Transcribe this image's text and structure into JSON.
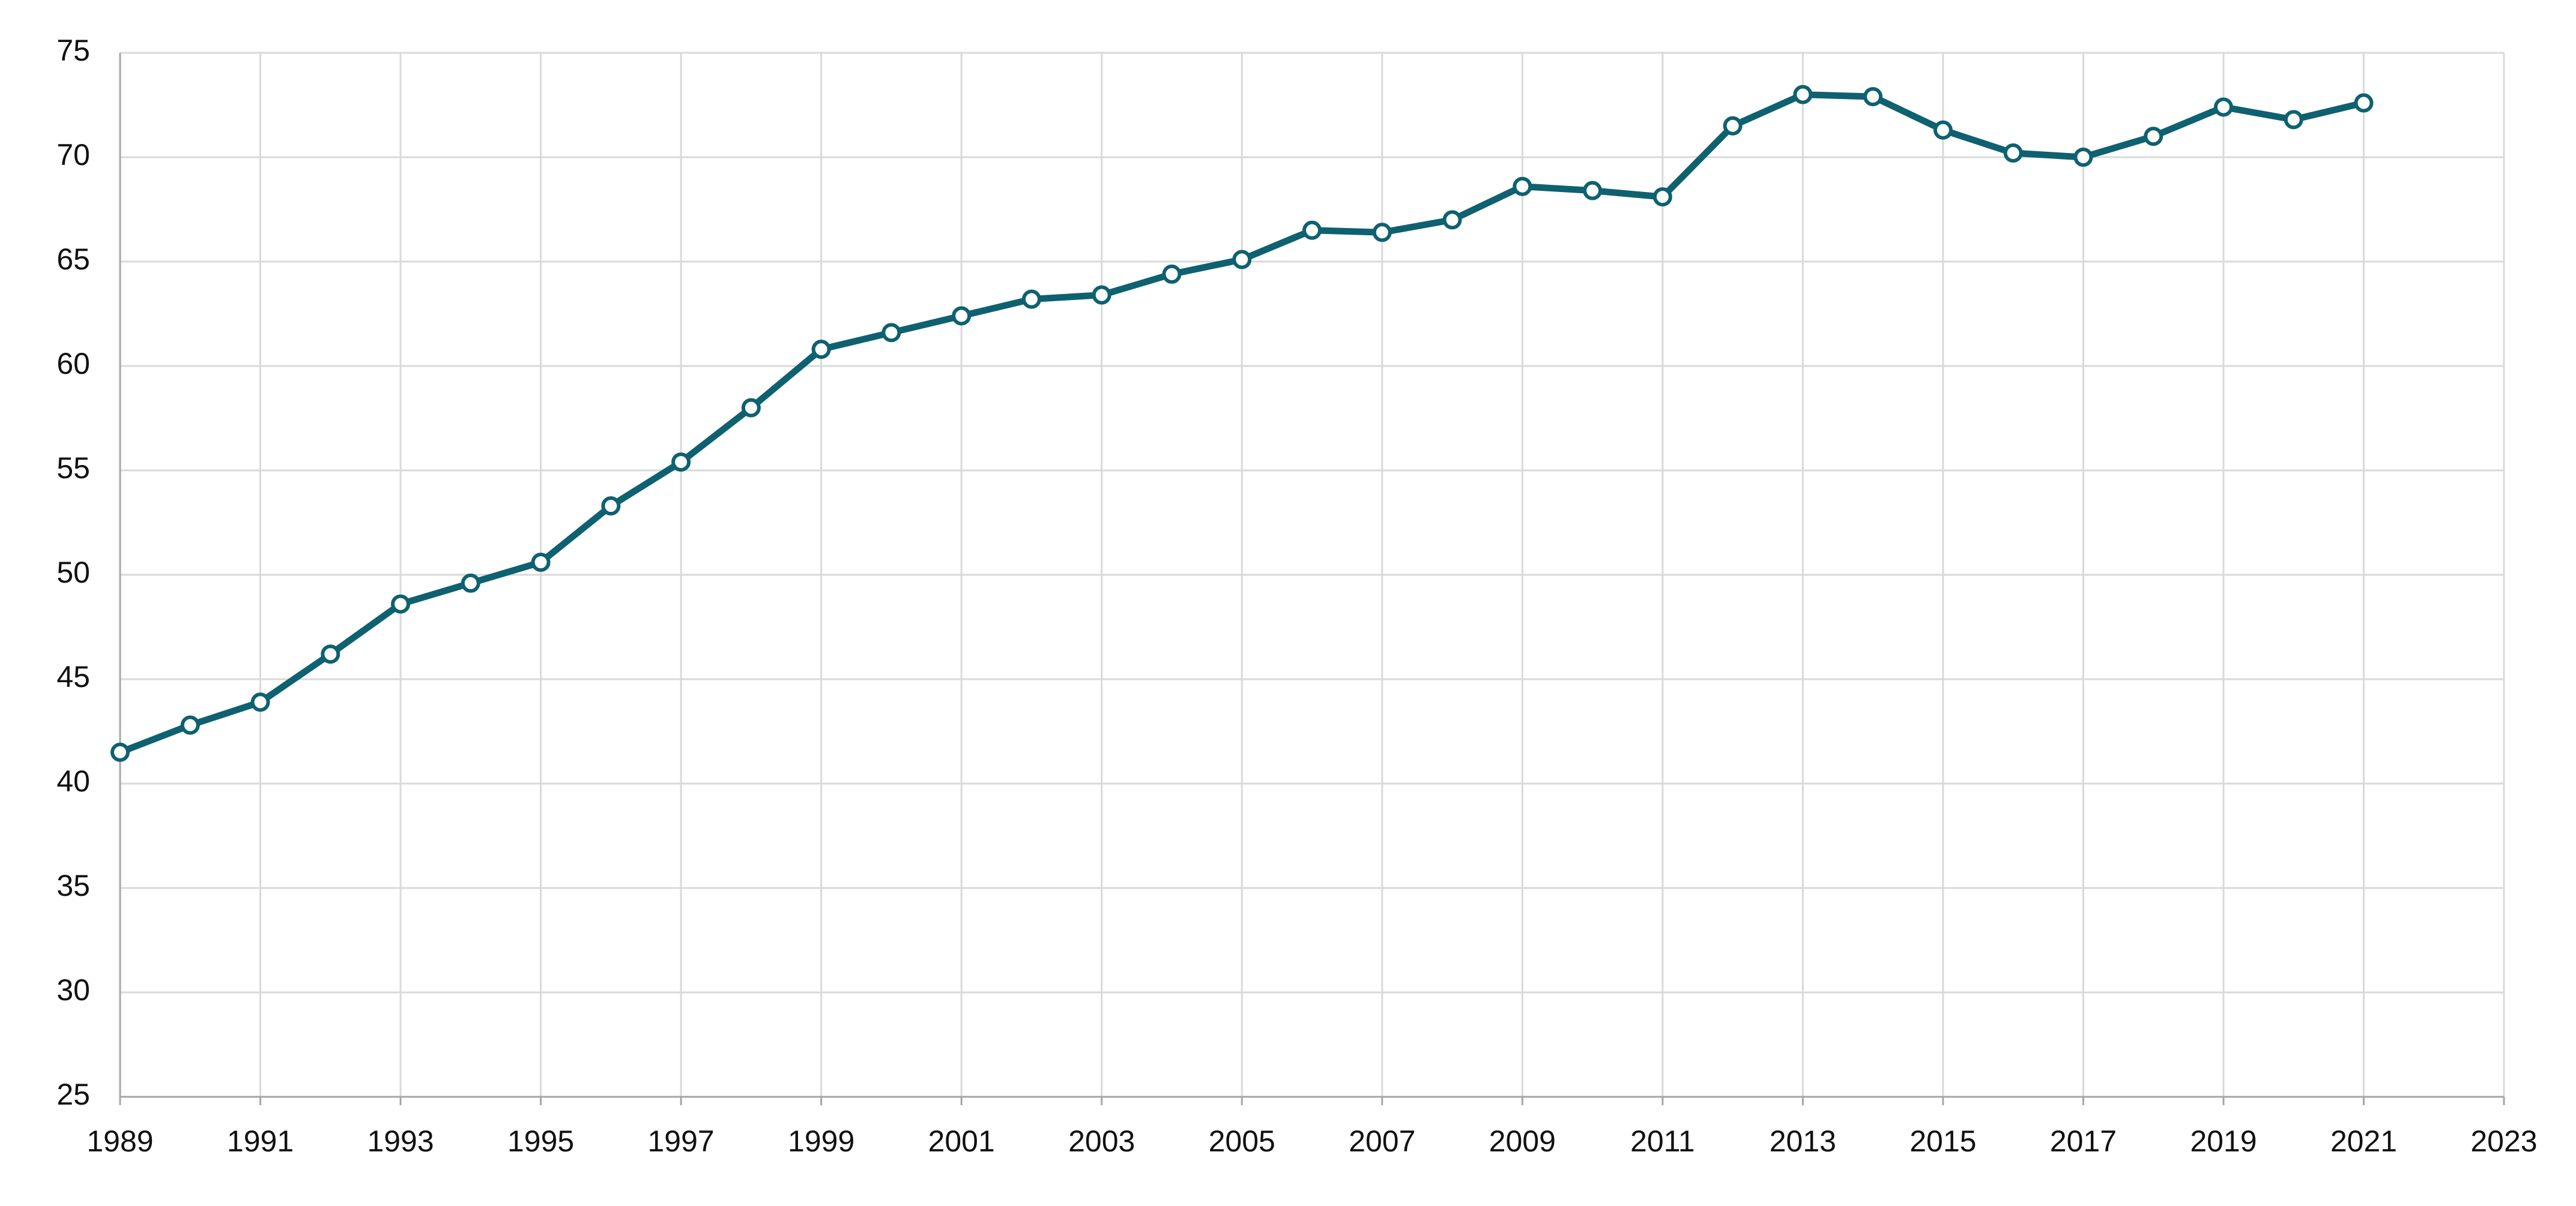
{
  "chart_data": {
    "type": "line",
    "x": [
      1989,
      1990,
      1991,
      1992,
      1993,
      1994,
      1995,
      1996,
      1997,
      1998,
      1999,
      2000,
      2001,
      2002,
      2003,
      2004,
      2005,
      2006,
      2007,
      2008,
      2009,
      2010,
      2011,
      2012,
      2013,
      2014,
      2015,
      2016,
      2017,
      2018,
      2019,
      2020,
      2021
    ],
    "series": [
      {
        "color": "#0e6170",
        "values": [
          41.5,
          42.8,
          43.9,
          46.2,
          48.6,
          49.6,
          50.6,
          53.3,
          55.4,
          58.0,
          60.8,
          61.6,
          62.4,
          63.2,
          63.4,
          64.4,
          65.1,
          66.5,
          66.4,
          67.0,
          68.6,
          68.4,
          68.1,
          71.5,
          73.0,
          72.9,
          71.3,
          70.2,
          70.0,
          71.0,
          72.4,
          71.8,
          72.6
        ]
      }
    ],
    "xlim": [
      1989,
      2023
    ],
    "xticks": [
      1989,
      1991,
      1993,
      1995,
      1997,
      1999,
      2001,
      2003,
      2005,
      2007,
      2009,
      2011,
      2013,
      2015,
      2017,
      2019,
      2021,
      2023
    ],
    "ylim": [
      25,
      75
    ],
    "yticks": [
      25,
      30,
      35,
      40,
      45,
      50,
      55,
      60,
      65,
      70,
      75
    ],
    "grid": true
  }
}
